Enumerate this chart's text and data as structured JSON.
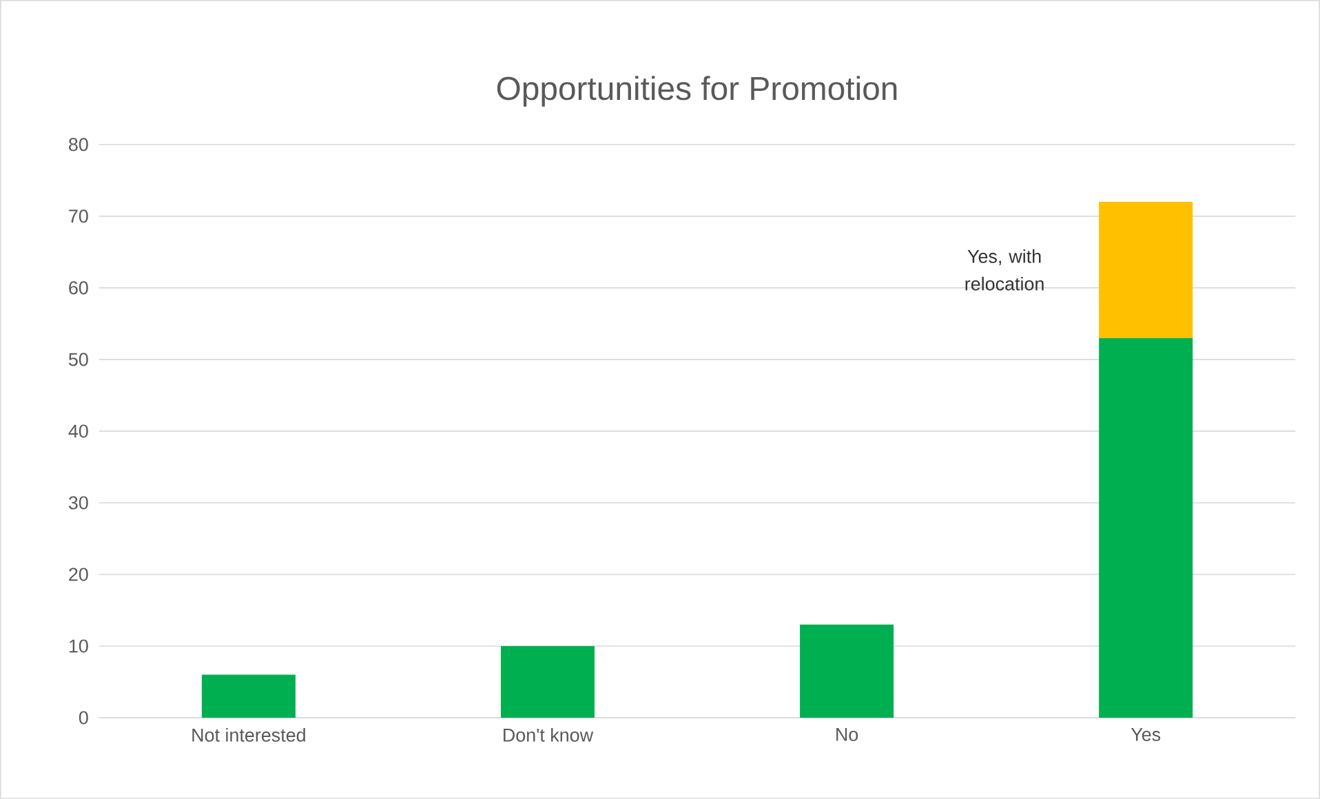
{
  "chart_data": {
    "type": "bar",
    "title": "Opportunities for Promotion",
    "stacked": true,
    "categories": [
      "Not interested",
      "Don't know",
      "No",
      "Yes"
    ],
    "series": [
      {
        "color": "#00b050",
        "values": [
          6,
          10,
          13,
          53
        ]
      },
      {
        "name": "Yes, with relocation",
        "color": "#ffc000",
        "values": [
          null,
          null,
          null,
          19
        ]
      }
    ],
    "ylim": [
      0,
      80
    ],
    "yticks": [
      0,
      10,
      20,
      30,
      40,
      50,
      60,
      70,
      80
    ],
    "grid": "y"
  }
}
